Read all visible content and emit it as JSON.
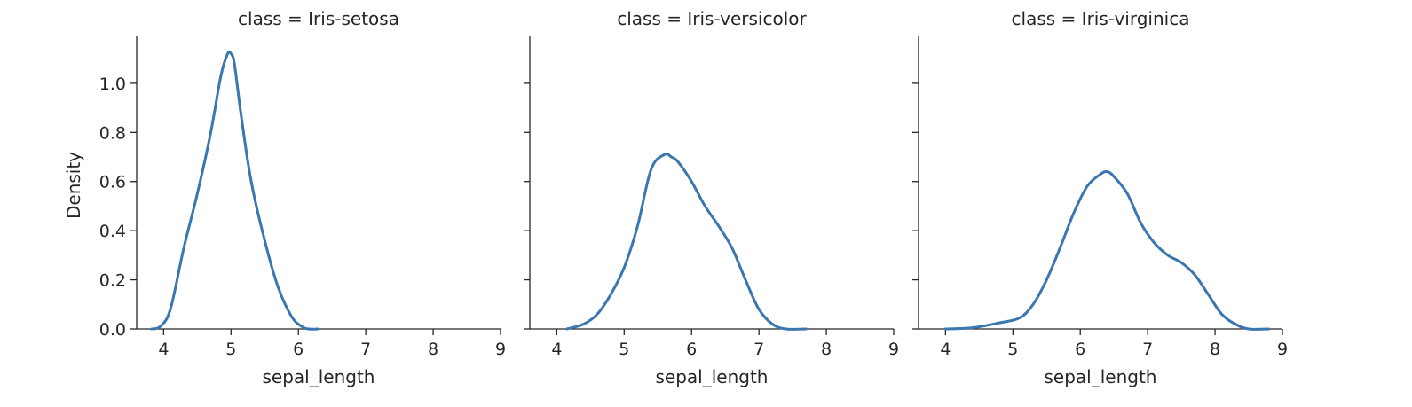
{
  "chart_data": {
    "type": "line",
    "facet_variable": "class",
    "colors": {
      "line": "#3a76af",
      "axis": "#262626"
    },
    "y_axis": {
      "label": "Density",
      "lim": [
        0,
        1.18
      ],
      "ticks": [
        0.0,
        0.2,
        0.4,
        0.6,
        0.8,
        1.0
      ],
      "tick_labels": [
        "0.0",
        "0.2",
        "0.4",
        "0.6",
        "0.8",
        "1.0"
      ]
    },
    "x_axis": {
      "label": "sepal_length",
      "lim": [
        3.6,
        9.0
      ],
      "ticks": [
        4,
        5,
        6,
        7,
        8,
        9
      ],
      "tick_labels": [
        "4",
        "5",
        "6",
        "7",
        "8",
        "9"
      ]
    },
    "grid": false,
    "panels": [
      {
        "title": "class = Iris-setosa",
        "series": {
          "x": [
            3.82,
            3.95,
            4.1,
            4.3,
            4.5,
            4.7,
            4.85,
            4.95,
            5.0,
            5.05,
            5.15,
            5.3,
            5.5,
            5.7,
            5.9,
            6.05,
            6.15,
            6.3
          ],
          "y": [
            0.0,
            0.01,
            0.08,
            0.33,
            0.55,
            0.8,
            1.03,
            1.12,
            1.12,
            1.08,
            0.87,
            0.6,
            0.36,
            0.17,
            0.05,
            0.01,
            0.0,
            0.0
          ]
        }
      },
      {
        "title": "class = Iris-versicolor",
        "series": {
          "x": [
            4.15,
            4.4,
            4.6,
            4.8,
            5.0,
            5.2,
            5.4,
            5.6,
            5.7,
            5.8,
            6.0,
            6.2,
            6.4,
            6.6,
            6.8,
            7.0,
            7.2,
            7.4,
            7.7
          ],
          "y": [
            0.0,
            0.02,
            0.06,
            0.14,
            0.25,
            0.42,
            0.65,
            0.71,
            0.7,
            0.68,
            0.6,
            0.5,
            0.42,
            0.33,
            0.2,
            0.08,
            0.02,
            0.0,
            0.0
          ]
        }
      },
      {
        "title": "class = Iris-virginica",
        "series": {
          "x": [
            4.0,
            4.4,
            4.8,
            5.1,
            5.3,
            5.5,
            5.7,
            5.9,
            6.1,
            6.3,
            6.4,
            6.5,
            6.7,
            6.9,
            7.1,
            7.3,
            7.5,
            7.7,
            7.9,
            8.1,
            8.3,
            8.5,
            8.8
          ],
          "y": [
            0.0,
            0.005,
            0.025,
            0.045,
            0.1,
            0.2,
            0.33,
            0.47,
            0.58,
            0.63,
            0.64,
            0.62,
            0.55,
            0.43,
            0.35,
            0.3,
            0.27,
            0.22,
            0.14,
            0.06,
            0.02,
            0.0,
            0.0
          ]
        }
      }
    ]
  }
}
